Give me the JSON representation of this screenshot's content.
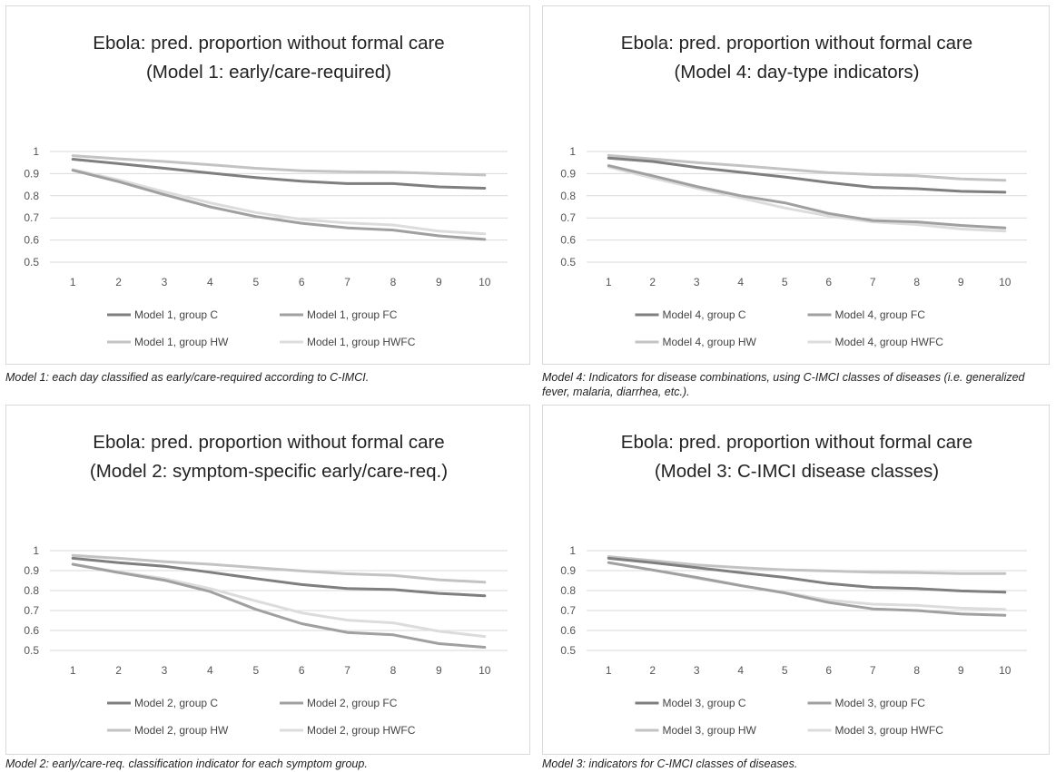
{
  "colors": {
    "group_C": "#7f7f7f",
    "group_FC": "#a0a0a0",
    "group_HW": "#c3c3c3",
    "group_HWFC": "#dcdcdc",
    "grid": "#d9d9d9"
  },
  "chart_data": [
    {
      "type": "line",
      "title": "Ebola: pred. proportion without formal care",
      "subtitle": "(Model 1: early/care-required)",
      "categories": [
        "1",
        "2",
        "3",
        "4",
        "5",
        "6",
        "7",
        "8",
        "9",
        "10"
      ],
      "y_ticks": [
        "0.5",
        "0.6",
        "0.7",
        "0.8",
        "0.9",
        "1"
      ],
      "ylim": [
        0.5,
        1.0
      ],
      "grid": true,
      "legend": "bottom",
      "series": [
        {
          "name": "Model 1, group C",
          "color_key": "group_C",
          "values": [
            0.965,
            0.945,
            0.924,
            0.903,
            0.882,
            0.866,
            0.855,
            0.855,
            0.84,
            0.834
          ]
        },
        {
          "name": "Model 1, group FC",
          "color_key": "group_FC",
          "values": [
            0.915,
            0.864,
            0.805,
            0.75,
            0.706,
            0.676,
            0.655,
            0.645,
            0.619,
            0.603
          ]
        },
        {
          "name": "Model 1, group HW",
          "color_key": "group_HW",
          "values": [
            0.981,
            0.967,
            0.955,
            0.94,
            0.924,
            0.913,
            0.908,
            0.907,
            0.9,
            0.894
          ]
        },
        {
          "name": "Model 1, group HWFC",
          "color_key": "group_HWFC",
          "values": [
            0.918,
            0.872,
            0.818,
            0.768,
            0.724,
            0.693,
            0.677,
            0.668,
            0.64,
            0.628
          ]
        }
      ],
      "caption": "Model 1: each day classified as early/care-required according to C-IMCI."
    },
    {
      "type": "line",
      "title": "Ebola: pred. proportion without formal care",
      "subtitle": "(Model 4: day-type indicators)",
      "categories": [
        "1",
        "2",
        "3",
        "4",
        "5",
        "6",
        "7",
        "8",
        "9",
        "10"
      ],
      "y_ticks": [
        "0.5",
        "0.6",
        "0.7",
        "0.8",
        "0.9",
        "1"
      ],
      "ylim": [
        0.5,
        1.0
      ],
      "grid": true,
      "legend": "bottom",
      "series": [
        {
          "name": "Model 4, group C",
          "color_key": "group_C",
          "values": [
            0.97,
            0.955,
            0.928,
            0.906,
            0.885,
            0.86,
            0.838,
            0.832,
            0.82,
            0.816
          ]
        },
        {
          "name": "Model 4, group FC",
          "color_key": "group_FC",
          "values": [
            0.936,
            0.89,
            0.842,
            0.8,
            0.768,
            0.72,
            0.688,
            0.682,
            0.666,
            0.655
          ]
        },
        {
          "name": "Model 4, group HW",
          "color_key": "group_HW",
          "values": [
            0.982,
            0.966,
            0.95,
            0.936,
            0.92,
            0.904,
            0.896,
            0.89,
            0.876,
            0.87
          ]
        },
        {
          "name": "Model 4, group HWFC",
          "color_key": "group_HWFC",
          "values": [
            0.93,
            0.88,
            0.834,
            0.79,
            0.745,
            0.708,
            0.682,
            0.67,
            0.65,
            0.64
          ]
        }
      ],
      "caption": "Model 4: Indicators for disease combinations, using C-IMCI classes of diseases (i.e. generalized fever, malaria, diarrhea, etc.)."
    },
    {
      "type": "line",
      "title": "Ebola: pred. proportion without formal care",
      "subtitle": "(Model 2: symptom-specific early/care-req.)",
      "categories": [
        "1",
        "2",
        "3",
        "4",
        "5",
        "6",
        "7",
        "8",
        "9",
        "10"
      ],
      "y_ticks": [
        "0.5",
        "0.6",
        "0.7",
        "0.8",
        "0.9",
        "1"
      ],
      "ylim": [
        0.5,
        1.0
      ],
      "grid": true,
      "legend": "bottom",
      "series": [
        {
          "name": "Model 2, group C",
          "color_key": "group_C",
          "values": [
            0.962,
            0.94,
            0.922,
            0.892,
            0.86,
            0.83,
            0.81,
            0.805,
            0.786,
            0.774
          ]
        },
        {
          "name": "Model 2, group FC",
          "color_key": "group_FC",
          "values": [
            0.932,
            0.89,
            0.852,
            0.795,
            0.706,
            0.634,
            0.59,
            0.578,
            0.534,
            0.516
          ]
        },
        {
          "name": "Model 2, group HW",
          "color_key": "group_HW",
          "values": [
            0.976,
            0.962,
            0.945,
            0.932,
            0.915,
            0.898,
            0.884,
            0.876,
            0.854,
            0.842
          ]
        },
        {
          "name": "Model 2, group HWFC",
          "color_key": "group_HWFC",
          "values": [
            0.932,
            0.893,
            0.86,
            0.81,
            0.748,
            0.688,
            0.652,
            0.638,
            0.596,
            0.57
          ]
        }
      ],
      "caption": "Model 2: early/care-req. classification indicator for each symptom group."
    },
    {
      "type": "line",
      "title": "Ebola: pred. proportion without formal care",
      "subtitle": "(Model 3: C-IMCI disease classes)",
      "categories": [
        "1",
        "2",
        "3",
        "4",
        "5",
        "6",
        "7",
        "8",
        "9",
        "10"
      ],
      "y_ticks": [
        "0.5",
        "0.6",
        "0.7",
        "0.8",
        "0.9",
        "1"
      ],
      "ylim": [
        0.5,
        1.0
      ],
      "grid": true,
      "legend": "bottom",
      "series": [
        {
          "name": "Model 3, group C",
          "color_key": "group_C",
          "values": [
            0.962,
            0.94,
            0.915,
            0.89,
            0.866,
            0.835,
            0.816,
            0.81,
            0.798,
            0.792
          ]
        },
        {
          "name": "Model 3, group FC",
          "color_key": "group_FC",
          "values": [
            0.94,
            0.903,
            0.866,
            0.825,
            0.788,
            0.74,
            0.708,
            0.7,
            0.683,
            0.676
          ]
        },
        {
          "name": "Model 3, group HW",
          "color_key": "group_HW",
          "values": [
            0.97,
            0.95,
            0.928,
            0.915,
            0.904,
            0.898,
            0.892,
            0.89,
            0.885,
            0.885
          ]
        },
        {
          "name": "Model 3, group HWFC",
          "color_key": "group_HWFC",
          "values": [
            0.94,
            0.903,
            0.862,
            0.825,
            0.79,
            0.752,
            0.732,
            0.726,
            0.712,
            0.706
          ]
        }
      ],
      "caption": "Model 3: indicators for C-IMCI classes of diseases."
    }
  ]
}
